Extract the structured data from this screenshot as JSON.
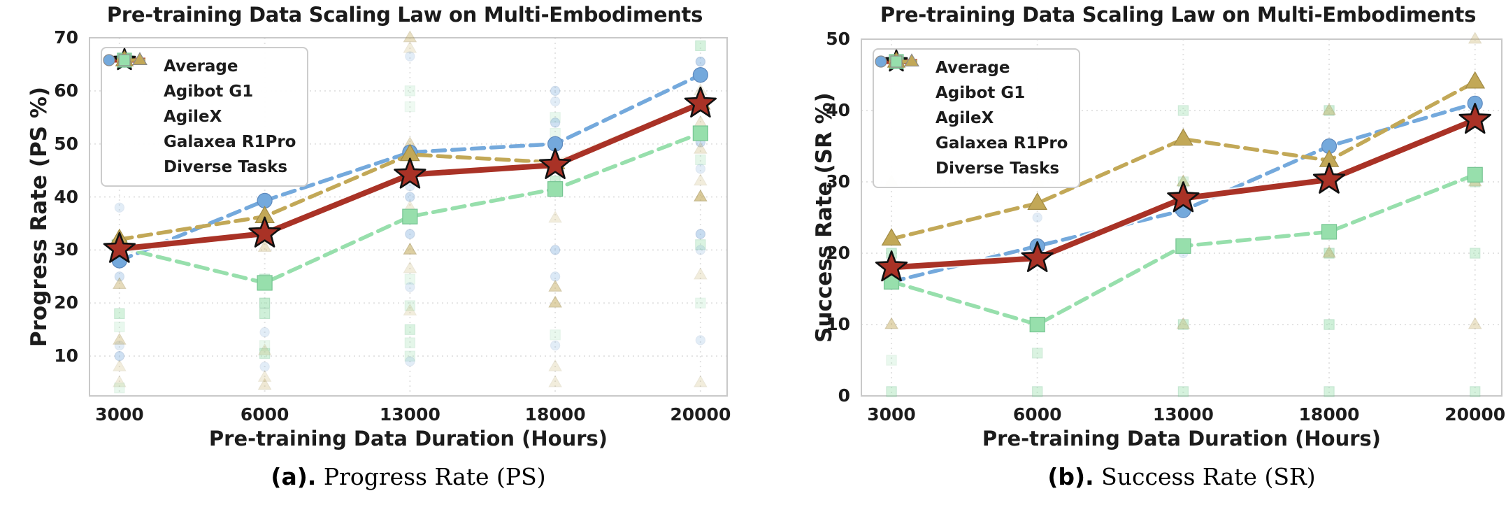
{
  "figure": {
    "colors": {
      "average": "#A93226",
      "agibot": "#74A9DC",
      "agilex": "#97DFAC",
      "galaxea": "#C2A857",
      "agibot_edge": "#5E89BD",
      "agilex_edge": "#76C492",
      "galaxea_edge": "#A08A45",
      "star_edge": "#111111",
      "grid": "#E3E3E3",
      "axis_border": "#C9C9C9",
      "text": "#1C1C1C"
    },
    "legend": [
      {
        "label": "Average",
        "marker": "star",
        "color": "average"
      },
      {
        "label": "Agibot G1",
        "marker": "circle",
        "color": "agibot"
      },
      {
        "label": "AgileX",
        "marker": "square",
        "color": "agilex"
      },
      {
        "label": "Galaxea R1Pro",
        "marker": "triangle",
        "color": "galaxea"
      },
      {
        "label": "Diverse Tasks",
        "marker": "multi",
        "color": ""
      }
    ]
  },
  "chart_data": [
    {
      "type": "line",
      "panel": "a",
      "title": "Pre-training Data Scaling Law on Multi-Embodiments",
      "ylabel": "Progress Rate (PS %)",
      "xlabel": "Pre-training Data Duration (Hours)",
      "caption_prefix": "(a).",
      "caption_text": "Progress Rate (PS)",
      "categories": [
        "3000",
        "6000",
        "13000",
        "18000",
        "20000"
      ],
      "ytick_labels": [
        "10",
        "20",
        "30",
        "40",
        "50",
        "60",
        "70"
      ],
      "yticks": [
        10,
        20,
        30,
        40,
        50,
        60,
        70
      ],
      "ylim": [
        2.5,
        70
      ],
      "grid": true,
      "legend_position": "upper left",
      "series": [
        {
          "name": "Average",
          "marker": "star",
          "color": "average",
          "values": [
            30.2,
            33.1,
            44.2,
            46.0,
            57.6
          ]
        },
        {
          "name": "Agibot G1",
          "marker": "circle",
          "color": "agibot",
          "values": [
            28.0,
            39.3,
            48.4,
            50.0,
            63.0
          ]
        },
        {
          "name": "AgileX",
          "marker": "square",
          "color": "agilex",
          "values": [
            30.5,
            23.8,
            36.3,
            41.5,
            52.0
          ]
        },
        {
          "name": "Galaxea R1Pro",
          "marker": "triangle",
          "color": "galaxea",
          "values": [
            32.0,
            36.3,
            48.0,
            46.5,
            57.7
          ]
        }
      ],
      "scatter_diverse_tasks": [
        [
          0,
          38,
          "b",
          0.2
        ],
        [
          0,
          25,
          "b",
          0.3
        ],
        [
          0,
          12,
          "b",
          0.2
        ],
        [
          0,
          10,
          "b",
          0.35
        ],
        [
          0,
          23.5,
          "t",
          0.4
        ],
        [
          0,
          13,
          "t",
          0.35
        ],
        [
          0,
          8,
          "t",
          0.2
        ],
        [
          0,
          5,
          "t",
          0.2
        ],
        [
          0,
          18,
          "g",
          0.4
        ],
        [
          0,
          15.5,
          "g",
          0.2
        ],
        [
          0,
          4,
          "g",
          0.2
        ],
        [
          1,
          30.5,
          "t",
          0.3
        ],
        [
          1,
          24.5,
          "g",
          0.5
        ],
        [
          1,
          20,
          "g",
          0.55
        ],
        [
          1,
          18,
          "g",
          0.45
        ],
        [
          1,
          14.5,
          "b",
          0.2
        ],
        [
          1,
          12,
          "g",
          0.2
        ],
        [
          1,
          10.5,
          "g",
          0.4
        ],
        [
          1,
          11,
          "t",
          0.2
        ],
        [
          1,
          8,
          "b",
          0.2
        ],
        [
          1,
          6,
          "t",
          0.2
        ],
        [
          1,
          4.5,
          "t",
          0.25
        ],
        [
          2,
          70,
          "t",
          0.35
        ],
        [
          2,
          68,
          "t",
          0.2
        ],
        [
          2,
          66.5,
          "b",
          0.2
        ],
        [
          2,
          60,
          "g",
          0.2
        ],
        [
          2,
          57,
          "g",
          0.15
        ],
        [
          2,
          50,
          "t",
          0.35
        ],
        [
          2,
          42,
          "b",
          0.2
        ],
        [
          2,
          40,
          "b",
          0.35
        ],
        [
          2,
          38,
          "t",
          0.2
        ],
        [
          2,
          33,
          "b",
          0.35
        ],
        [
          2,
          30,
          "t",
          0.55
        ],
        [
          2,
          26.5,
          "t",
          0.2
        ],
        [
          2,
          24.5,
          "g",
          0.2
        ],
        [
          2,
          23,
          "b",
          0.2
        ],
        [
          2,
          19.5,
          "g",
          0.25
        ],
        [
          2,
          18.5,
          "t",
          0.2
        ],
        [
          2,
          15,
          "g",
          0.35
        ],
        [
          2,
          12.5,
          "g",
          0.25
        ],
        [
          2,
          10,
          "g",
          0.25
        ],
        [
          2,
          9,
          "b",
          0.2
        ],
        [
          3,
          60,
          "b",
          0.3
        ],
        [
          3,
          58,
          "b",
          0.2
        ],
        [
          3,
          55,
          "g",
          0.2
        ],
        [
          3,
          54,
          "b",
          0.35
        ],
        [
          3,
          52,
          "g",
          0.2
        ],
        [
          3,
          43,
          "g",
          0.45
        ],
        [
          3,
          36,
          "t",
          0.2
        ],
        [
          3,
          30,
          "b",
          0.35
        ],
        [
          3,
          25,
          "b",
          0.25
        ],
        [
          3,
          23,
          "t",
          0.45
        ],
        [
          3,
          20,
          "t",
          0.5
        ],
        [
          3,
          14,
          "g",
          0.2
        ],
        [
          3,
          12,
          "b",
          0.2
        ],
        [
          3,
          8,
          "t",
          0.2
        ],
        [
          3,
          5,
          "t",
          0.2
        ],
        [
          4,
          68.5,
          "g",
          0.4
        ],
        [
          4,
          65.5,
          "b",
          0.45
        ],
        [
          4,
          60,
          "t",
          0.2
        ],
        [
          4,
          54,
          "t",
          0.25
        ],
        [
          4,
          50.3,
          "b",
          0.35
        ],
        [
          4,
          49,
          "t",
          0.25
        ],
        [
          4,
          47,
          "g",
          0.25
        ],
        [
          4,
          45.3,
          "b",
          0.2
        ],
        [
          4,
          43,
          "t",
          0.2
        ],
        [
          4,
          40,
          "t",
          0.6
        ],
        [
          4,
          33,
          "b",
          0.4
        ],
        [
          4,
          31,
          "g",
          0.35
        ],
        [
          4,
          30,
          "b",
          0.2
        ],
        [
          4,
          25.3,
          "t",
          0.2
        ],
        [
          4,
          20,
          "g",
          0.2
        ],
        [
          4,
          13,
          "b",
          0.2
        ],
        [
          4,
          5,
          "t",
          0.2
        ]
      ]
    },
    {
      "type": "line",
      "panel": "b",
      "title": "Pre-training Data Scaling Law on Multi-Embodiments",
      "ylabel": "Success Rate (SR %)",
      "xlabel": "Pre-training Data Duration (Hours)",
      "caption_prefix": "(b).",
      "caption_text": "Success Rate (SR)",
      "categories": [
        "3000",
        "6000",
        "13000",
        "18000",
        "20000"
      ],
      "ytick_labels": [
        "0",
        "10",
        "20",
        "30",
        "40",
        "50"
      ],
      "yticks": [
        0,
        10,
        20,
        30,
        40,
        50
      ],
      "ylim": [
        0,
        50
      ],
      "grid": true,
      "legend_position": "upper left",
      "series": [
        {
          "name": "Average",
          "marker": "star",
          "color": "average",
          "values": [
            18.0,
            19.3,
            27.7,
            30.3,
            38.7
          ]
        },
        {
          "name": "Agibot G1",
          "marker": "circle",
          "color": "agibot",
          "values": [
            16.0,
            21.0,
            26.0,
            35.0,
            41.0
          ]
        },
        {
          "name": "AgileX",
          "marker": "square",
          "color": "agilex",
          "values": [
            16.0,
            10.0,
            21.0,
            23.0,
            31.0
          ]
        },
        {
          "name": "Galaxea R1Pro",
          "marker": "triangle",
          "color": "galaxea",
          "values": [
            22.0,
            27.0,
            36.0,
            33.0,
            44.0
          ]
        }
      ],
      "scatter_diverse_tasks": [
        [
          0,
          30,
          "t",
          0.45
        ],
        [
          0,
          20,
          "g",
          0.5
        ],
        [
          0,
          10,
          "t",
          0.45
        ],
        [
          0,
          5,
          "g",
          0.2
        ],
        [
          0,
          0.6,
          "g",
          0.4
        ],
        [
          1,
          30,
          "t",
          0.3
        ],
        [
          1,
          25,
          "b",
          0.2
        ],
        [
          1,
          6,
          "g",
          0.35
        ],
        [
          1,
          0.6,
          "g",
          0.4
        ],
        [
          2,
          40,
          "g",
          0.35
        ],
        [
          2,
          30,
          "t",
          0.5
        ],
        [
          2,
          30,
          "g",
          0.3
        ],
        [
          2,
          20,
          "b",
          0.2
        ],
        [
          2,
          10,
          "g",
          0.45
        ],
        [
          2,
          10,
          "t",
          0.3
        ],
        [
          2,
          0.6,
          "g",
          0.4
        ],
        [
          3,
          40,
          "g",
          0.45
        ],
        [
          3,
          40,
          "t",
          0.4
        ],
        [
          3,
          20,
          "g",
          0.5
        ],
        [
          3,
          20,
          "t",
          0.4
        ],
        [
          3,
          10,
          "g",
          0.45
        ],
        [
          3,
          0.6,
          "g",
          0.4
        ],
        [
          4,
          50,
          "t",
          0.3
        ],
        [
          4,
          30,
          "g",
          0.4
        ],
        [
          4,
          30,
          "t",
          0.35
        ],
        [
          4,
          20,
          "g",
          0.4
        ],
        [
          4,
          10,
          "t",
          0.3
        ],
        [
          4,
          0.6,
          "g",
          0.4
        ]
      ]
    }
  ]
}
